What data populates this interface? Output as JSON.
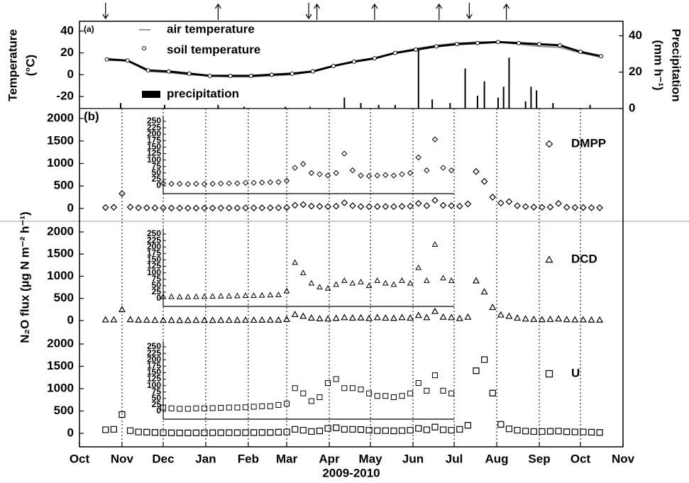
{
  "chart_data": [
    {
      "type": "line",
      "label": "(a)",
      "ylabel": [
        "Temperature",
        "(°C)"
      ],
      "y2label": [
        "Precipitation",
        "(mm h⁻¹)"
      ],
      "xlim": [
        0,
        396
      ],
      "ylim": [
        -31,
        49
      ],
      "yticks": [
        -20,
        0,
        20,
        40
      ],
      "y2lim": [
        0,
        48
      ],
      "y2ticks": [
        0,
        20,
        40
      ],
      "arrows_down": [
        19,
        167,
        284
      ],
      "arrows_up": [
        101,
        173,
        215,
        262,
        311
      ],
      "series": [
        {
          "name": "air temperature",
          "color": "#9a9a9a",
          "x": [
            20,
            35,
            50,
            65,
            80,
            95,
            110,
            125,
            140,
            155,
            170,
            185,
            200,
            215,
            230,
            245,
            260,
            275,
            290,
            305,
            320,
            335,
            350,
            365,
            380
          ],
          "values": [
            15,
            13,
            3,
            2,
            0,
            -1,
            -2,
            -2,
            -1,
            0,
            3,
            8,
            12,
            15,
            20,
            24,
            27,
            29,
            30,
            30,
            28,
            26,
            25,
            20,
            16
          ]
        },
        {
          "name": "soil temperature",
          "color": "#000000",
          "x": [
            20,
            35,
            50,
            65,
            80,
            95,
            110,
            125,
            140,
            155,
            170,
            185,
            200,
            215,
            230,
            245,
            260,
            275,
            290,
            305,
            320,
            335,
            350,
            365,
            380
          ],
          "values": [
            14,
            13,
            4,
            3,
            1,
            -1,
            -1,
            -1,
            0,
            1,
            3,
            8,
            12,
            15,
            20,
            23,
            26,
            28,
            29,
            30,
            29,
            28,
            27,
            21,
            17
          ]
        },
        {
          "name": "precipitation",
          "color": "#000000",
          "type": "bar",
          "axis": "y2",
          "x": [
            30,
            62,
            101,
            120,
            150,
            168,
            193,
            205,
            218,
            230,
            247,
            257,
            270,
            281,
            290,
            295,
            305,
            309,
            313,
            325,
            329,
            333,
            345,
            372
          ],
          "values": [
            3,
            2,
            2,
            1,
            1,
            1,
            6,
            3,
            2,
            2,
            33,
            5,
            3,
            22,
            7,
            15,
            6,
            12,
            28,
            4,
            12,
            10,
            3,
            2
          ]
        }
      ]
    },
    {
      "type": "scatter",
      "label": "(b)",
      "xlim": [
        0,
        396
      ],
      "ylim": [
        -286,
        2222
      ],
      "yticks": [
        0,
        500,
        1000,
        1500,
        2000
      ],
      "inset": {
        "xlim": [
          61,
          273
        ],
        "ylim": [
          -30,
          272
        ],
        "yticks": [
          0,
          25,
          50,
          75,
          100,
          125,
          150,
          175,
          200,
          225,
          250
        ]
      },
      "series": [
        {
          "name": "DMPP",
          "marker": "diamond",
          "color": "#000000",
          "x": [
            19,
            25,
            31,
            37,
            43,
            49,
            55,
            61,
            67,
            73,
            79,
            85,
            91,
            97,
            103,
            109,
            115,
            121,
            127,
            133,
            139,
            145,
            151,
            157,
            163,
            169,
            175,
            181,
            187,
            193,
            199,
            205,
            211,
            217,
            223,
            229,
            235,
            241,
            247,
            253,
            259,
            265,
            271,
            277,
            283,
            289,
            295,
            301,
            307,
            313,
            319,
            325,
            331,
            337,
            343,
            349,
            355,
            361,
            367,
            373,
            379
          ],
          "values": [
            20,
            25,
            330,
            30,
            15,
            15,
            12,
            10,
            8,
            8,
            7,
            8,
            7,
            8,
            9,
            10,
            10,
            12,
            12,
            13,
            14,
            15,
            20,
            70,
            85,
            50,
            45,
            40,
            50,
            125,
            60,
            40,
            38,
            40,
            42,
            40,
            45,
            50,
            110,
            60,
            180,
            70,
            60,
            50,
            100,
            820,
            600,
            250,
            120,
            150,
            60,
            40,
            30,
            25,
            30,
            110,
            25,
            20,
            20,
            15,
            15
          ]
        }
      ]
    },
    {
      "type": "scatter",
      "ylabel": "N₂O flux (µg N m⁻² h⁻¹)",
      "xlim": [
        0,
        396
      ],
      "ylim": [
        -288,
        2240
      ],
      "yticks": [
        0,
        500,
        1000,
        1500,
        2000
      ],
      "inset": {
        "xlim": [
          61,
          273
        ],
        "ylim": [
          -30,
          272
        ],
        "yticks": [
          0,
          25,
          50,
          75,
          100,
          125,
          150,
          175,
          200,
          225,
          250
        ]
      },
      "series": [
        {
          "name": "DCD",
          "marker": "triangle",
          "color": "#000000",
          "x": [
            19,
            25,
            31,
            37,
            43,
            49,
            55,
            61,
            67,
            73,
            79,
            85,
            91,
            97,
            103,
            109,
            115,
            121,
            127,
            133,
            139,
            145,
            151,
            157,
            163,
            169,
            175,
            181,
            187,
            193,
            199,
            205,
            211,
            217,
            223,
            229,
            235,
            241,
            247,
            253,
            259,
            265,
            271,
            277,
            283,
            289,
            295,
            301,
            307,
            313,
            319,
            325,
            331,
            337,
            343,
            349,
            355,
            361,
            367,
            373,
            379
          ],
          "values": [
            20,
            20,
            250,
            25,
            15,
            12,
            10,
            8,
            8,
            7,
            7,
            8,
            8,
            9,
            10,
            10,
            11,
            12,
            12,
            13,
            14,
            15,
            30,
            140,
            100,
            60,
            45,
            40,
            55,
            70,
            60,
            65,
            50,
            70,
            60,
            55,
            70,
            60,
            120,
            70,
            210,
            80,
            70,
            50,
            80,
            900,
            650,
            300,
            130,
            100,
            60,
            40,
            30,
            25,
            30,
            40,
            25,
            20,
            20,
            15,
            15
          ]
        }
      ]
    },
    {
      "type": "scatter",
      "xlabel": "2009-2010",
      "xlim": [
        0,
        396
      ],
      "ylim": [
        -302,
        2238
      ],
      "yticks": [
        0,
        500,
        1000,
        1500,
        2000
      ],
      "xticks": [
        {
          "value": 0,
          "label": "Oct"
        },
        {
          "value": 31,
          "label": "Nov"
        },
        {
          "value": 61,
          "label": "Dec"
        },
        {
          "value": 92,
          "label": "Jan"
        },
        {
          "value": 123,
          "label": "Feb"
        },
        {
          "value": 151,
          "label": "Mar"
        },
        {
          "value": 182,
          "label": "Apr"
        },
        {
          "value": 212,
          "label": "May"
        },
        {
          "value": 243,
          "label": "Jun"
        },
        {
          "value": 273,
          "label": "Jul"
        },
        {
          "value": 304,
          "label": "Aug"
        },
        {
          "value": 335,
          "label": "Sep"
        },
        {
          "value": 365,
          "label": "Oct"
        },
        {
          "value": 396,
          "label": "Nov"
        }
      ],
      "inset": {
        "xlim": [
          61,
          273
        ],
        "ylim": [
          -30,
          272
        ],
        "yticks": [
          0,
          25,
          50,
          75,
          100,
          125,
          150,
          175,
          200,
          225,
          250
        ]
      },
      "series": [
        {
          "name": "U",
          "marker": "square",
          "color": "#000000",
          "x": [
            19,
            25,
            31,
            37,
            43,
            49,
            55,
            61,
            67,
            73,
            79,
            85,
            91,
            97,
            103,
            109,
            115,
            121,
            127,
            133,
            139,
            145,
            151,
            157,
            163,
            169,
            175,
            181,
            187,
            193,
            199,
            205,
            211,
            217,
            223,
            229,
            235,
            241,
            247,
            253,
            259,
            265,
            271,
            277,
            283,
            289,
            295,
            301,
            307,
            313,
            319,
            325,
            331,
            337,
            343,
            349,
            355,
            361,
            367,
            373,
            379
          ],
          "values": [
            80,
            90,
            420,
            60,
            30,
            25,
            20,
            15,
            12,
            10,
            10,
            12,
            12,
            13,
            14,
            15,
            15,
            16,
            18,
            20,
            20,
            25,
            30,
            90,
            70,
            40,
            55,
            110,
            125,
            90,
            90,
            85,
            70,
            60,
            60,
            55,
            60,
            70,
            110,
            80,
            140,
            80,
            70,
            90,
            180,
            1400,
            1650,
            900,
            200,
            100,
            70,
            50,
            40,
            40,
            45,
            50,
            35,
            30,
            30,
            25,
            20
          ]
        }
      ]
    }
  ]
}
